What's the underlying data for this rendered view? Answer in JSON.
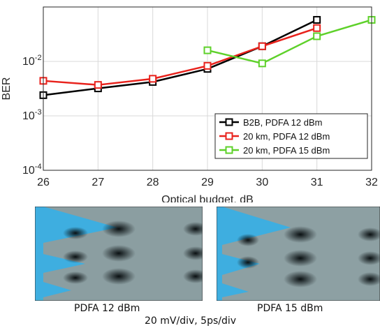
{
  "chart_data": {
    "type": "line",
    "xlabel": "Optical budget, dB",
    "ylabel": "BER",
    "yscale": "log",
    "xlim": [
      26,
      32
    ],
    "ylim": [
      0.0001,
      0.1
    ],
    "xticks": [
      "26",
      "27",
      "28",
      "29",
      "30",
      "31",
      "32"
    ],
    "grid": true,
    "legend_position": "bottom-right",
    "series": [
      {
        "name": "B2B, PDFA 12 dBm",
        "color": "#000000",
        "x": [
          26,
          27,
          28,
          29,
          30,
          31
        ],
        "y": [
          0.0024,
          0.0032,
          0.0042,
          0.0073,
          0.019,
          0.058
        ]
      },
      {
        "name": "20 km, PDFA 12 dBm",
        "color": "#e8221c",
        "x": [
          26,
          27,
          28,
          29,
          30,
          31
        ],
        "y": [
          0.0044,
          0.0037,
          0.0048,
          0.0083,
          0.019,
          0.041
        ]
      },
      {
        "name": "20 km, PDFA 15 dBm",
        "color": "#5ed12a",
        "x": [
          29,
          30,
          31,
          32
        ],
        "y": [
          0.016,
          0.0092,
          0.029,
          0.058
        ]
      }
    ]
  },
  "eye_diagrams": {
    "left_caption": "PDFA 12 dBm",
    "right_caption": "PDFA 15 dBm",
    "scale_caption": "20 mV/div, 5ps/div"
  }
}
